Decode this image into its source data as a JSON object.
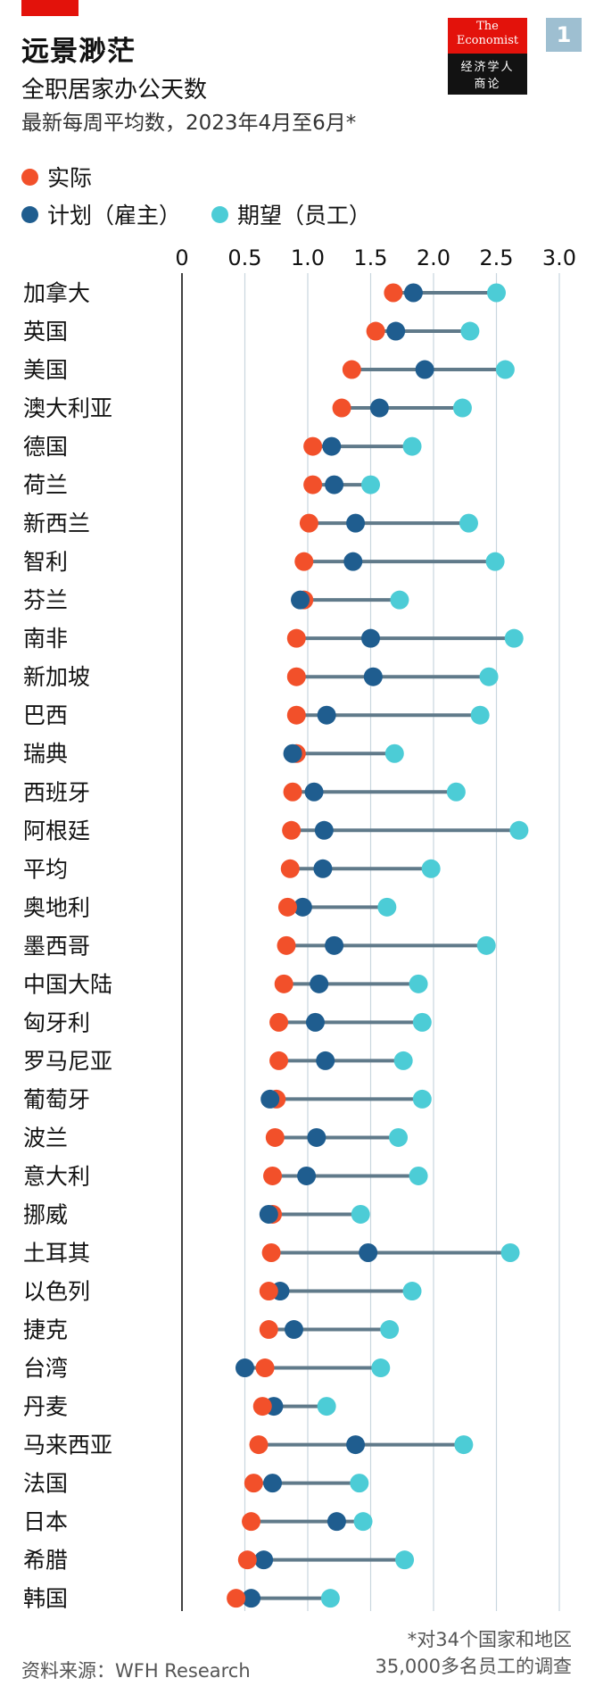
{
  "header": {
    "title": "远景渺茫",
    "subtitle": "全职居家办公天数",
    "subsubtitle": "最新每周平均数，2023年4月至6月*"
  },
  "logo": {
    "line1": "The",
    "line2": "Economist",
    "line3": "经济学人",
    "line4": "商论"
  },
  "badge": "1",
  "colors": {
    "actual": "#F2502A",
    "employer": "#1F5D8F",
    "employee": "#4CCCD6",
    "line": "#607A8A",
    "brand_red": "#E3120B"
  },
  "legend": {
    "actual": "实际",
    "employer": "计划（雇主）",
    "employee": "期望（员工）"
  },
  "footer": {
    "source": "资料来源：WFH Research",
    "footnote_line1": "*对34个国家和地区",
    "footnote_line2": "35,000多名员工的调查"
  },
  "chart_data": {
    "type": "dot-range",
    "xlim": [
      0,
      3.0
    ],
    "x_ticks": [
      "0",
      "0.5",
      "1.0",
      "1.5",
      "2.0",
      "2.5",
      "3.0"
    ],
    "x_tick_values": [
      0,
      0.5,
      1.0,
      1.5,
      2.0,
      2.5,
      3.0
    ],
    "grid": true,
    "categories": [
      "加拿大",
      "英国",
      "美国",
      "澳大利亚",
      "德国",
      "荷兰",
      "新西兰",
      "智利",
      "芬兰",
      "南非",
      "新加坡",
      "巴西",
      "瑞典",
      "西班牙",
      "阿根廷",
      "平均",
      "奥地利",
      "墨西哥",
      "中国大陆",
      "匈牙利",
      "罗马尼亚",
      "葡萄牙",
      "波兰",
      "意大利",
      "挪威",
      "土耳其",
      "以色列",
      "捷克",
      "台湾",
      "丹麦",
      "马来西亚",
      "法国",
      "日本",
      "希腊",
      "韩国"
    ],
    "series": [
      {
        "name": "实际",
        "values": [
          1.68,
          1.54,
          1.35,
          1.27,
          1.04,
          1.04,
          1.01,
          0.97,
          0.97,
          0.91,
          0.91,
          0.91,
          0.91,
          0.88,
          0.87,
          0.86,
          0.84,
          0.83,
          0.81,
          0.77,
          0.77,
          0.75,
          0.74,
          0.72,
          0.72,
          0.71,
          0.69,
          0.69,
          0.66,
          0.64,
          0.61,
          0.57,
          0.55,
          0.52,
          0.43
        ]
      },
      {
        "name": "计划（雇主）",
        "values": [
          1.84,
          1.7,
          1.93,
          1.57,
          1.19,
          1.21,
          1.38,
          1.36,
          0.94,
          1.5,
          1.52,
          1.15,
          0.88,
          1.05,
          1.13,
          1.12,
          0.96,
          1.21,
          1.09,
          1.06,
          1.14,
          0.7,
          1.07,
          0.99,
          0.69,
          1.48,
          0.78,
          0.89,
          0.5,
          0.73,
          1.38,
          0.72,
          1.23,
          0.65,
          0.55
        ]
      },
      {
        "name": "期望（员工）",
        "values": [
          2.5,
          2.29,
          2.57,
          2.23,
          1.83,
          1.5,
          2.28,
          2.49,
          1.73,
          2.64,
          2.44,
          2.37,
          1.69,
          2.18,
          2.68,
          1.98,
          1.63,
          2.42,
          1.88,
          1.91,
          1.76,
          1.91,
          1.72,
          1.88,
          1.42,
          2.61,
          1.83,
          1.65,
          1.58,
          1.15,
          2.24,
          1.41,
          1.44,
          1.77,
          1.18
        ]
      }
    ]
  }
}
